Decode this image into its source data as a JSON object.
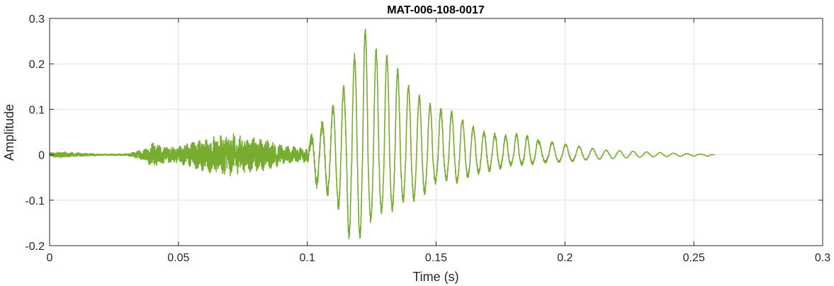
{
  "chart_data": {
    "type": "line",
    "title": "MAT-006-108-0017",
    "xlabel": "Time (s)",
    "ylabel": "Amplitude",
    "xlim": [
      0,
      0.3
    ],
    "ylim": [
      -0.2,
      0.3
    ],
    "xticks": [
      0,
      0.05,
      0.1,
      0.15,
      0.2,
      0.25,
      0.3
    ],
    "xtick_labels": [
      "0",
      "0.05",
      "0.1",
      "0.15",
      "0.2",
      "0.25",
      "0.3"
    ],
    "yticks": [
      -0.2,
      -0.1,
      0,
      0.1,
      0.2,
      0.3
    ],
    "ytick_labels": [
      "-0.2",
      "-0.1",
      "0",
      "0.1",
      "0.2",
      "0.3"
    ],
    "grid": true,
    "legend": "none",
    "color": "#77ac30",
    "series": [
      {
        "x_start": 0,
        "x_end": 0.258,
        "description_points": [
          [
            0.0,
            0.0
          ],
          [
            0.004,
            0.003
          ],
          [
            0.004,
            -0.01
          ],
          [
            0.01,
            0.002
          ],
          [
            0.02,
            -0.001
          ],
          [
            0.03,
            0.001
          ],
          [
            0.038,
            -0.003
          ],
          [
            0.04,
            0.035
          ],
          [
            0.04,
            -0.02
          ],
          [
            0.045,
            0.015
          ],
          [
            0.05,
            -0.015
          ],
          [
            0.055,
            0.03
          ],
          [
            0.058,
            -0.03
          ],
          [
            0.062,
            0.04
          ],
          [
            0.065,
            -0.035
          ],
          [
            0.068,
            0.05
          ],
          [
            0.07,
            -0.04
          ],
          [
            0.072,
            0.045
          ],
          [
            0.075,
            -0.035
          ],
          [
            0.08,
            0.03
          ],
          [
            0.083,
            -0.04
          ],
          [
            0.088,
            0.02
          ],
          [
            0.092,
            -0.02
          ],
          [
            0.097,
            0.015
          ],
          [
            0.1,
            0.02
          ],
          [
            0.101,
            0.03
          ],
          [
            0.102,
            -0.01
          ],
          [
            0.103,
            -0.06
          ],
          [
            0.104,
            0.05
          ],
          [
            0.106,
            -0.07
          ],
          [
            0.107,
            0.075
          ],
          [
            0.109,
            -0.09
          ],
          [
            0.11,
            0.1
          ],
          [
            0.112,
            -0.11
          ],
          [
            0.113,
            0.16
          ],
          [
            0.114,
            -0.13
          ],
          [
            0.115,
            0.13
          ],
          [
            0.116,
            -0.18
          ],
          [
            0.117,
            0.2
          ],
          [
            0.118,
            -0.15
          ],
          [
            0.119,
            0.22
          ],
          [
            0.12,
            -0.185
          ],
          [
            0.121,
            0.275
          ],
          [
            0.122,
            -0.16
          ],
          [
            0.123,
            0.27
          ],
          [
            0.124,
            -0.14
          ],
          [
            0.125,
            0.215
          ],
          [
            0.126,
            -0.15
          ],
          [
            0.128,
            0.235
          ],
          [
            0.129,
            -0.12
          ],
          [
            0.13,
            0.22
          ],
          [
            0.131,
            -0.13
          ],
          [
            0.133,
            0.2
          ],
          [
            0.134,
            -0.11
          ],
          [
            0.136,
            0.175
          ],
          [
            0.137,
            -0.1
          ],
          [
            0.139,
            0.15
          ],
          [
            0.14,
            -0.1
          ],
          [
            0.142,
            0.13
          ],
          [
            0.143,
            -0.09
          ],
          [
            0.145,
            0.12
          ],
          [
            0.146,
            -0.08
          ],
          [
            0.148,
            0.105
          ],
          [
            0.149,
            -0.06
          ],
          [
            0.151,
            0.1
          ],
          [
            0.153,
            -0.05
          ],
          [
            0.155,
            0.095
          ],
          [
            0.157,
            -0.06
          ],
          [
            0.159,
            0.08
          ],
          [
            0.161,
            -0.05
          ],
          [
            0.163,
            0.065
          ],
          [
            0.165,
            -0.04
          ],
          [
            0.167,
            0.05
          ],
          [
            0.169,
            -0.035
          ],
          [
            0.171,
            0.045
          ],
          [
            0.174,
            -0.03
          ],
          [
            0.177,
            0.04
          ],
          [
            0.18,
            -0.02
          ],
          [
            0.183,
            0.045
          ],
          [
            0.186,
            -0.02
          ],
          [
            0.19,
            0.03
          ],
          [
            0.193,
            -0.015
          ],
          [
            0.197,
            0.025
          ],
          [
            0.2,
            -0.015
          ],
          [
            0.205,
            0.018
          ],
          [
            0.21,
            -0.01
          ],
          [
            0.215,
            0.01
          ],
          [
            0.22,
            -0.008
          ],
          [
            0.225,
            0.008
          ],
          [
            0.23,
            -0.005
          ],
          [
            0.24,
            0.004
          ],
          [
            0.25,
            -0.003
          ],
          [
            0.258,
            0.0
          ]
        ]
      }
    ]
  }
}
